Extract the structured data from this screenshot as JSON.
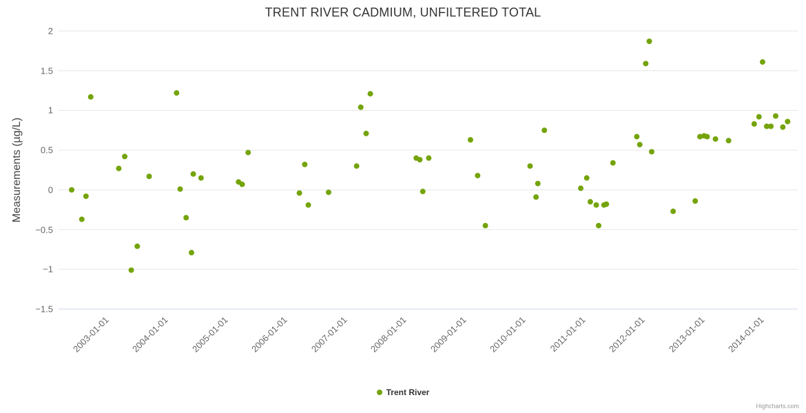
{
  "chart_data": {
    "type": "scatter",
    "title": "TRENT RIVER CADMIUM, UNFILTERED TOTAL",
    "xlabel": "",
    "ylabel": "Measurements (µg/L)",
    "ylim": [
      -1.5,
      2
    ],
    "xlim": [
      2002.3,
      2014.7
    ],
    "grid": true,
    "legend_position": "bottom-center",
    "colors": {
      "series": "#74a40a",
      "grid": "#e6e6e6",
      "axis_line": "#ccd6eb",
      "title": "#333333",
      "axis_title": "#444444",
      "tick_labels": "#666666",
      "legend_text": "#333333",
      "credits": "#999999"
    },
    "y_ticks": [
      {
        "v": 2,
        "label": "2"
      },
      {
        "v": 1.5,
        "label": "1.5"
      },
      {
        "v": 1,
        "label": "1"
      },
      {
        "v": 0.5,
        "label": "0.5"
      },
      {
        "v": 0,
        "label": "0"
      },
      {
        "v": -0.5,
        "label": "−0.5"
      },
      {
        "v": -1,
        "label": "−1"
      },
      {
        "v": -1.5,
        "label": "−1.5"
      }
    ],
    "x_ticks": [
      {
        "v": 2003,
        "label": "2003-01-01"
      },
      {
        "v": 2004,
        "label": "2004-01-01"
      },
      {
        "v": 2005,
        "label": "2005-01-01"
      },
      {
        "v": 2006,
        "label": "2006-01-01"
      },
      {
        "v": 2007,
        "label": "2007-01-01"
      },
      {
        "v": 2008,
        "label": "2008-01-01"
      },
      {
        "v": 2009,
        "label": "2009-01-01"
      },
      {
        "v": 2010,
        "label": "2010-01-01"
      },
      {
        "v": 2011,
        "label": "2011-01-01"
      },
      {
        "v": 2012,
        "label": "2012-01-01"
      },
      {
        "v": 2013,
        "label": "2013-01-01"
      },
      {
        "v": 2014,
        "label": "2014-01-01"
      }
    ],
    "series": [
      {
        "name": "Trent River",
        "marker": "circle",
        "color": "#74a40a",
        "points": [
          [
            2002.52,
            0.0
          ],
          [
            2002.69,
            -0.37
          ],
          [
            2002.76,
            -0.08
          ],
          [
            2002.84,
            1.17
          ],
          [
            2003.31,
            0.27
          ],
          [
            2003.41,
            0.42
          ],
          [
            2003.52,
            -1.01
          ],
          [
            2003.62,
            -0.71
          ],
          [
            2003.82,
            0.17
          ],
          [
            2004.28,
            1.22
          ],
          [
            2004.34,
            0.01
          ],
          [
            2004.44,
            -0.35
          ],
          [
            2004.53,
            -0.79
          ],
          [
            2004.56,
            0.2
          ],
          [
            2004.69,
            0.15
          ],
          [
            2005.32,
            0.1
          ],
          [
            2005.38,
            0.07
          ],
          [
            2005.48,
            0.47
          ],
          [
            2006.34,
            -0.04
          ],
          [
            2006.43,
            0.32
          ],
          [
            2006.49,
            -0.19
          ],
          [
            2006.83,
            -0.03
          ],
          [
            2007.3,
            0.3
          ],
          [
            2007.37,
            1.04
          ],
          [
            2007.46,
            0.71
          ],
          [
            2007.53,
            1.21
          ],
          [
            2008.3,
            0.4
          ],
          [
            2008.36,
            0.38
          ],
          [
            2008.41,
            -0.02
          ],
          [
            2008.51,
            0.4
          ],
          [
            2009.21,
            0.63
          ],
          [
            2009.33,
            0.18
          ],
          [
            2009.46,
            -0.45
          ],
          [
            2010.21,
            0.3
          ],
          [
            2010.31,
            -0.09
          ],
          [
            2010.34,
            0.08
          ],
          [
            2010.45,
            0.75
          ],
          [
            2011.06,
            0.02
          ],
          [
            2011.16,
            0.15
          ],
          [
            2011.22,
            -0.15
          ],
          [
            2011.32,
            -0.19
          ],
          [
            2011.36,
            -0.45
          ],
          [
            2011.45,
            -0.19
          ],
          [
            2011.49,
            -0.18
          ],
          [
            2011.6,
            0.34
          ],
          [
            2012.0,
            0.67
          ],
          [
            2012.05,
            0.57
          ],
          [
            2012.15,
            1.59
          ],
          [
            2012.21,
            1.87
          ],
          [
            2012.25,
            0.48
          ],
          [
            2012.61,
            -0.27
          ],
          [
            2012.98,
            -0.14
          ],
          [
            2013.06,
            0.67
          ],
          [
            2013.13,
            0.68
          ],
          [
            2013.18,
            0.67
          ],
          [
            2013.32,
            0.64
          ],
          [
            2013.54,
            0.62
          ],
          [
            2013.97,
            0.83
          ],
          [
            2014.05,
            0.92
          ],
          [
            2014.11,
            1.61
          ],
          [
            2014.18,
            0.8
          ],
          [
            2014.25,
            0.8
          ],
          [
            2014.33,
            0.93
          ],
          [
            2014.45,
            0.79
          ],
          [
            2014.53,
            0.86
          ]
        ]
      }
    ]
  },
  "credits": {
    "text": "Highcharts.com"
  }
}
